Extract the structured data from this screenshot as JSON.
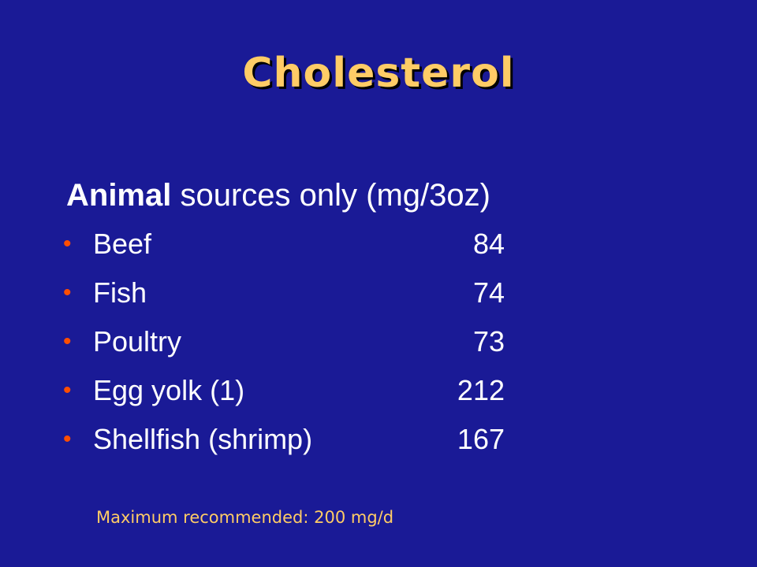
{
  "colors": {
    "background": "#1a1a96",
    "title": "#ffcc66",
    "text": "#ffffff",
    "bullet": "#ff4e00",
    "note": "#ffcc66"
  },
  "slide": {
    "title": "Cholesterol",
    "subtitle_strong": "Animal",
    "subtitle_rest": " sources only (mg/3oz)",
    "items": [
      {
        "label": "Beef",
        "value": "84"
      },
      {
        "label": "Fish",
        "value": "74"
      },
      {
        "label": "Poultry",
        "value": "73"
      },
      {
        "label": "Egg yolk (1)",
        "value": "212"
      },
      {
        "label": "Shellfish (shrimp)",
        "value": "167"
      }
    ],
    "note": "Maximum recommended: 200 mg/d"
  }
}
